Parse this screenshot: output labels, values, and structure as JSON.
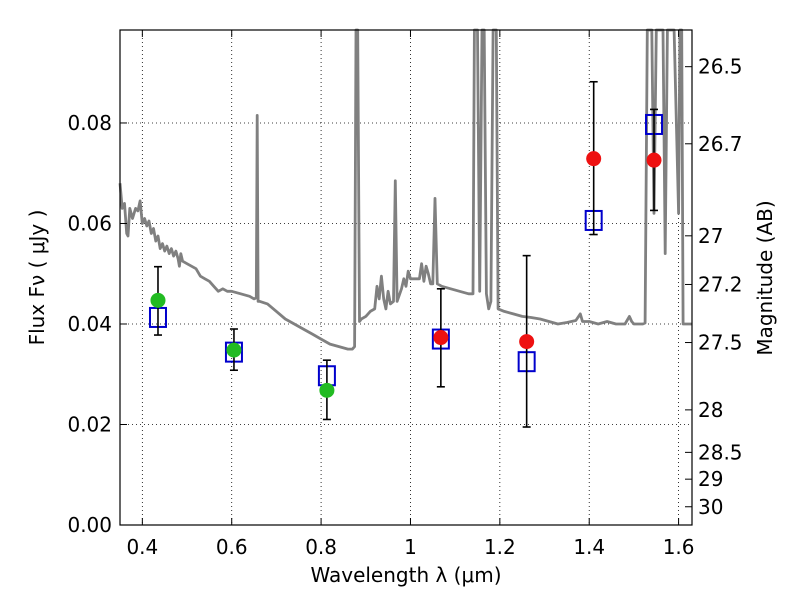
{
  "chart_data": {
    "type": "scatter",
    "xlabel": "Wavelength  λ (μm)",
    "ylabel": "Flux  Fν  ( μJy )",
    "y2label": "Magnitude (AB)",
    "xlim": [
      0.35,
      1.63
    ],
    "ylim": [
      0.0,
      0.0985
    ],
    "grid": true,
    "x_ticks": [
      {
        "value": 0.4,
        "label": "0.4"
      },
      {
        "value": 0.6,
        "label": "0.6"
      },
      {
        "value": 0.8,
        "label": "0.8"
      },
      {
        "value": 1.0,
        "label": "1"
      },
      {
        "value": 1.2,
        "label": "1.2"
      },
      {
        "value": 1.4,
        "label": "1.4"
      },
      {
        "value": 1.6,
        "label": "1.6"
      }
    ],
    "y_ticks": [
      {
        "value": 0.0,
        "label": "0.00"
      },
      {
        "value": 0.02,
        "label": "0.02"
      },
      {
        "value": 0.04,
        "label": "0.04"
      },
      {
        "value": 0.06,
        "label": "0.06"
      },
      {
        "value": 0.08,
        "label": "0.08"
      }
    ],
    "y2_ticks": [
      {
        "value": 26.5,
        "label": "26.5"
      },
      {
        "value": 26.7,
        "label": "26.7"
      },
      {
        "value": 27.0,
        "label": "27"
      },
      {
        "value": 27.2,
        "label": "27.2"
      },
      {
        "value": 27.5,
        "label": "27.5"
      },
      {
        "value": 28.0,
        "label": "28"
      },
      {
        "value": 28.5,
        "label": "28.5"
      },
      {
        "value": 29.0,
        "label": "29"
      },
      {
        "value": 30.0,
        "label": "30"
      }
    ],
    "model_spectrum": {
      "color": "#808080",
      "points": [
        [
          0.35,
          0.068
        ],
        [
          0.355,
          0.063
        ],
        [
          0.36,
          0.064
        ],
        [
          0.365,
          0.058
        ],
        [
          0.368,
          0.0575
        ],
        [
          0.372,
          0.063
        ],
        [
          0.378,
          0.061
        ],
        [
          0.385,
          0.063
        ],
        [
          0.39,
          0.0625
        ],
        [
          0.395,
          0.0645
        ],
        [
          0.4,
          0.06
        ],
        [
          0.405,
          0.061
        ],
        [
          0.41,
          0.0595
        ],
        [
          0.415,
          0.0605
        ],
        [
          0.42,
          0.058
        ],
        [
          0.425,
          0.059
        ],
        [
          0.43,
          0.0565
        ],
        [
          0.435,
          0.0575
        ],
        [
          0.44,
          0.055
        ],
        [
          0.445,
          0.056
        ],
        [
          0.45,
          0.0545
        ],
        [
          0.455,
          0.0555
        ],
        [
          0.46,
          0.054
        ],
        [
          0.465,
          0.055
        ],
        [
          0.47,
          0.0535
        ],
        [
          0.475,
          0.0545
        ],
        [
          0.48,
          0.053
        ],
        [
          0.483,
          0.0515
        ],
        [
          0.486,
          0.054
        ],
        [
          0.49,
          0.0525
        ],
        [
          0.5,
          0.052
        ],
        [
          0.51,
          0.0515
        ],
        [
          0.52,
          0.051
        ],
        [
          0.53,
          0.0495
        ],
        [
          0.54,
          0.049
        ],
        [
          0.55,
          0.0485
        ],
        [
          0.56,
          0.0475
        ],
        [
          0.57,
          0.0465
        ],
        [
          0.58,
          0.047
        ],
        [
          0.59,
          0.0465
        ],
        [
          0.6,
          0.0465
        ],
        [
          0.62,
          0.046
        ],
        [
          0.64,
          0.0455
        ],
        [
          0.65,
          0.045
        ],
        [
          0.655,
          0.0452
        ],
        [
          0.657,
          0.0815
        ],
        [
          0.659,
          0.0445
        ],
        [
          0.663,
          0.0445
        ],
        [
          0.68,
          0.044
        ],
        [
          0.7,
          0.0425
        ],
        [
          0.72,
          0.041
        ],
        [
          0.74,
          0.04
        ],
        [
          0.76,
          0.039
        ],
        [
          0.78,
          0.038
        ],
        [
          0.8,
          0.037
        ],
        [
          0.82,
          0.036
        ],
        [
          0.84,
          0.0355
        ],
        [
          0.86,
          0.035
        ],
        [
          0.87,
          0.035
        ],
        [
          0.875,
          0.0355
        ],
        [
          0.878,
          0.0985
        ],
        [
          0.882,
          0.0985
        ],
        [
          0.886,
          0.0405
        ],
        [
          0.89,
          0.041
        ],
        [
          0.9,
          0.0415
        ],
        [
          0.91,
          0.0425
        ],
        [
          0.92,
          0.043
        ],
        [
          0.925,
          0.0475
        ],
        [
          0.93,
          0.045
        ],
        [
          0.935,
          0.0495
        ],
        [
          0.94,
          0.045
        ],
        [
          0.945,
          0.043
        ],
        [
          0.95,
          0.0465
        ],
        [
          0.955,
          0.044
        ],
        [
          0.962,
          0.0445
        ],
        [
          0.966,
          0.0685
        ],
        [
          0.97,
          0.0445
        ],
        [
          0.98,
          0.047
        ],
        [
          0.985,
          0.049
        ],
        [
          0.99,
          0.0475
        ],
        [
          0.995,
          0.0505
        ],
        [
          1.0,
          0.049
        ],
        [
          1.01,
          0.049
        ],
        [
          1.02,
          0.049
        ],
        [
          1.025,
          0.052
        ],
        [
          1.03,
          0.0485
        ],
        [
          1.035,
          0.0515
        ],
        [
          1.04,
          0.05
        ],
        [
          1.045,
          0.048
        ],
        [
          1.05,
          0.048
        ],
        [
          1.055,
          0.065
        ],
        [
          1.06,
          0.048
        ],
        [
          1.07,
          0.0475
        ],
        [
          1.09,
          0.047
        ],
        [
          1.11,
          0.0465
        ],
        [
          1.13,
          0.046
        ],
        [
          1.14,
          0.046
        ],
        [
          1.143,
          0.0985
        ],
        [
          1.15,
          0.0985
        ],
        [
          1.155,
          0.0465
        ],
        [
          1.16,
          0.0985
        ],
        [
          1.165,
          0.0985
        ],
        [
          1.17,
          0.046
        ],
        [
          1.175,
          0.043
        ],
        [
          1.18,
          0.0445
        ],
        [
          1.185,
          0.0985
        ],
        [
          1.192,
          0.0985
        ],
        [
          1.196,
          0.043
        ],
        [
          1.21,
          0.0425
        ],
        [
          1.23,
          0.042
        ],
        [
          1.25,
          0.0415
        ],
        [
          1.27,
          0.0413
        ],
        [
          1.29,
          0.041
        ],
        [
          1.31,
          0.0405
        ],
        [
          1.33,
          0.04
        ],
        [
          1.35,
          0.0403
        ],
        [
          1.37,
          0.0407
        ],
        [
          1.38,
          0.042
        ],
        [
          1.385,
          0.0405
        ],
        [
          1.4,
          0.0405
        ],
        [
          1.42,
          0.04
        ],
        [
          1.44,
          0.0405
        ],
        [
          1.46,
          0.04
        ],
        [
          1.48,
          0.04
        ],
        [
          1.49,
          0.0415
        ],
        [
          1.495,
          0.0405
        ],
        [
          1.5,
          0.04
        ],
        [
          1.52,
          0.04
        ],
        [
          1.525,
          0.0402
        ],
        [
          1.53,
          0.0985
        ],
        [
          1.54,
          0.0985
        ],
        [
          1.545,
          0.062
        ],
        [
          1.55,
          0.0985
        ],
        [
          1.565,
          0.0985
        ],
        [
          1.57,
          0.054
        ],
        [
          1.575,
          0.0985
        ],
        [
          1.59,
          0.0985
        ],
        [
          1.6,
          0.062
        ],
        [
          1.603,
          0.0985
        ],
        [
          1.607,
          0.0985
        ],
        [
          1.61,
          0.04
        ],
        [
          1.63,
          0.04
        ]
      ]
    },
    "series": [
      {
        "marker": "open-square",
        "color": "#0000cc",
        "points": [
          {
            "x": 0.435,
            "y": 0.0413
          },
          {
            "x": 0.605,
            "y": 0.0344
          },
          {
            "x": 0.813,
            "y": 0.0297
          },
          {
            "x": 1.068,
            "y": 0.037
          },
          {
            "x": 1.26,
            "y": 0.0325
          },
          {
            "x": 1.41,
            "y": 0.0606
          },
          {
            "x": 1.545,
            "y": 0.0797
          }
        ]
      },
      {
        "marker": "filled-circle",
        "color": "#22bb22",
        "points": [
          {
            "x": 0.435,
            "y": 0.0447,
            "err_low": 0.0378,
            "err_high": 0.0514
          },
          {
            "x": 0.605,
            "y": 0.0348,
            "err_low": 0.0308,
            "err_high": 0.039
          },
          {
            "x": 0.813,
            "y": 0.0268,
            "err_low": 0.021,
            "err_high": 0.0328
          }
        ]
      },
      {
        "marker": "filled-circle",
        "color": "#ee1111",
        "points": [
          {
            "x": 1.068,
            "y": 0.0373,
            "err_low": 0.0275,
            "err_high": 0.047
          },
          {
            "x": 1.26,
            "y": 0.0365,
            "err_low": 0.0195,
            "err_high": 0.0536
          },
          {
            "x": 1.41,
            "y": 0.0729,
            "err_low": 0.0578,
            "err_high": 0.0882
          },
          {
            "x": 1.545,
            "y": 0.0726,
            "err_low": 0.0626,
            "err_high": 0.0827
          }
        ]
      }
    ]
  }
}
